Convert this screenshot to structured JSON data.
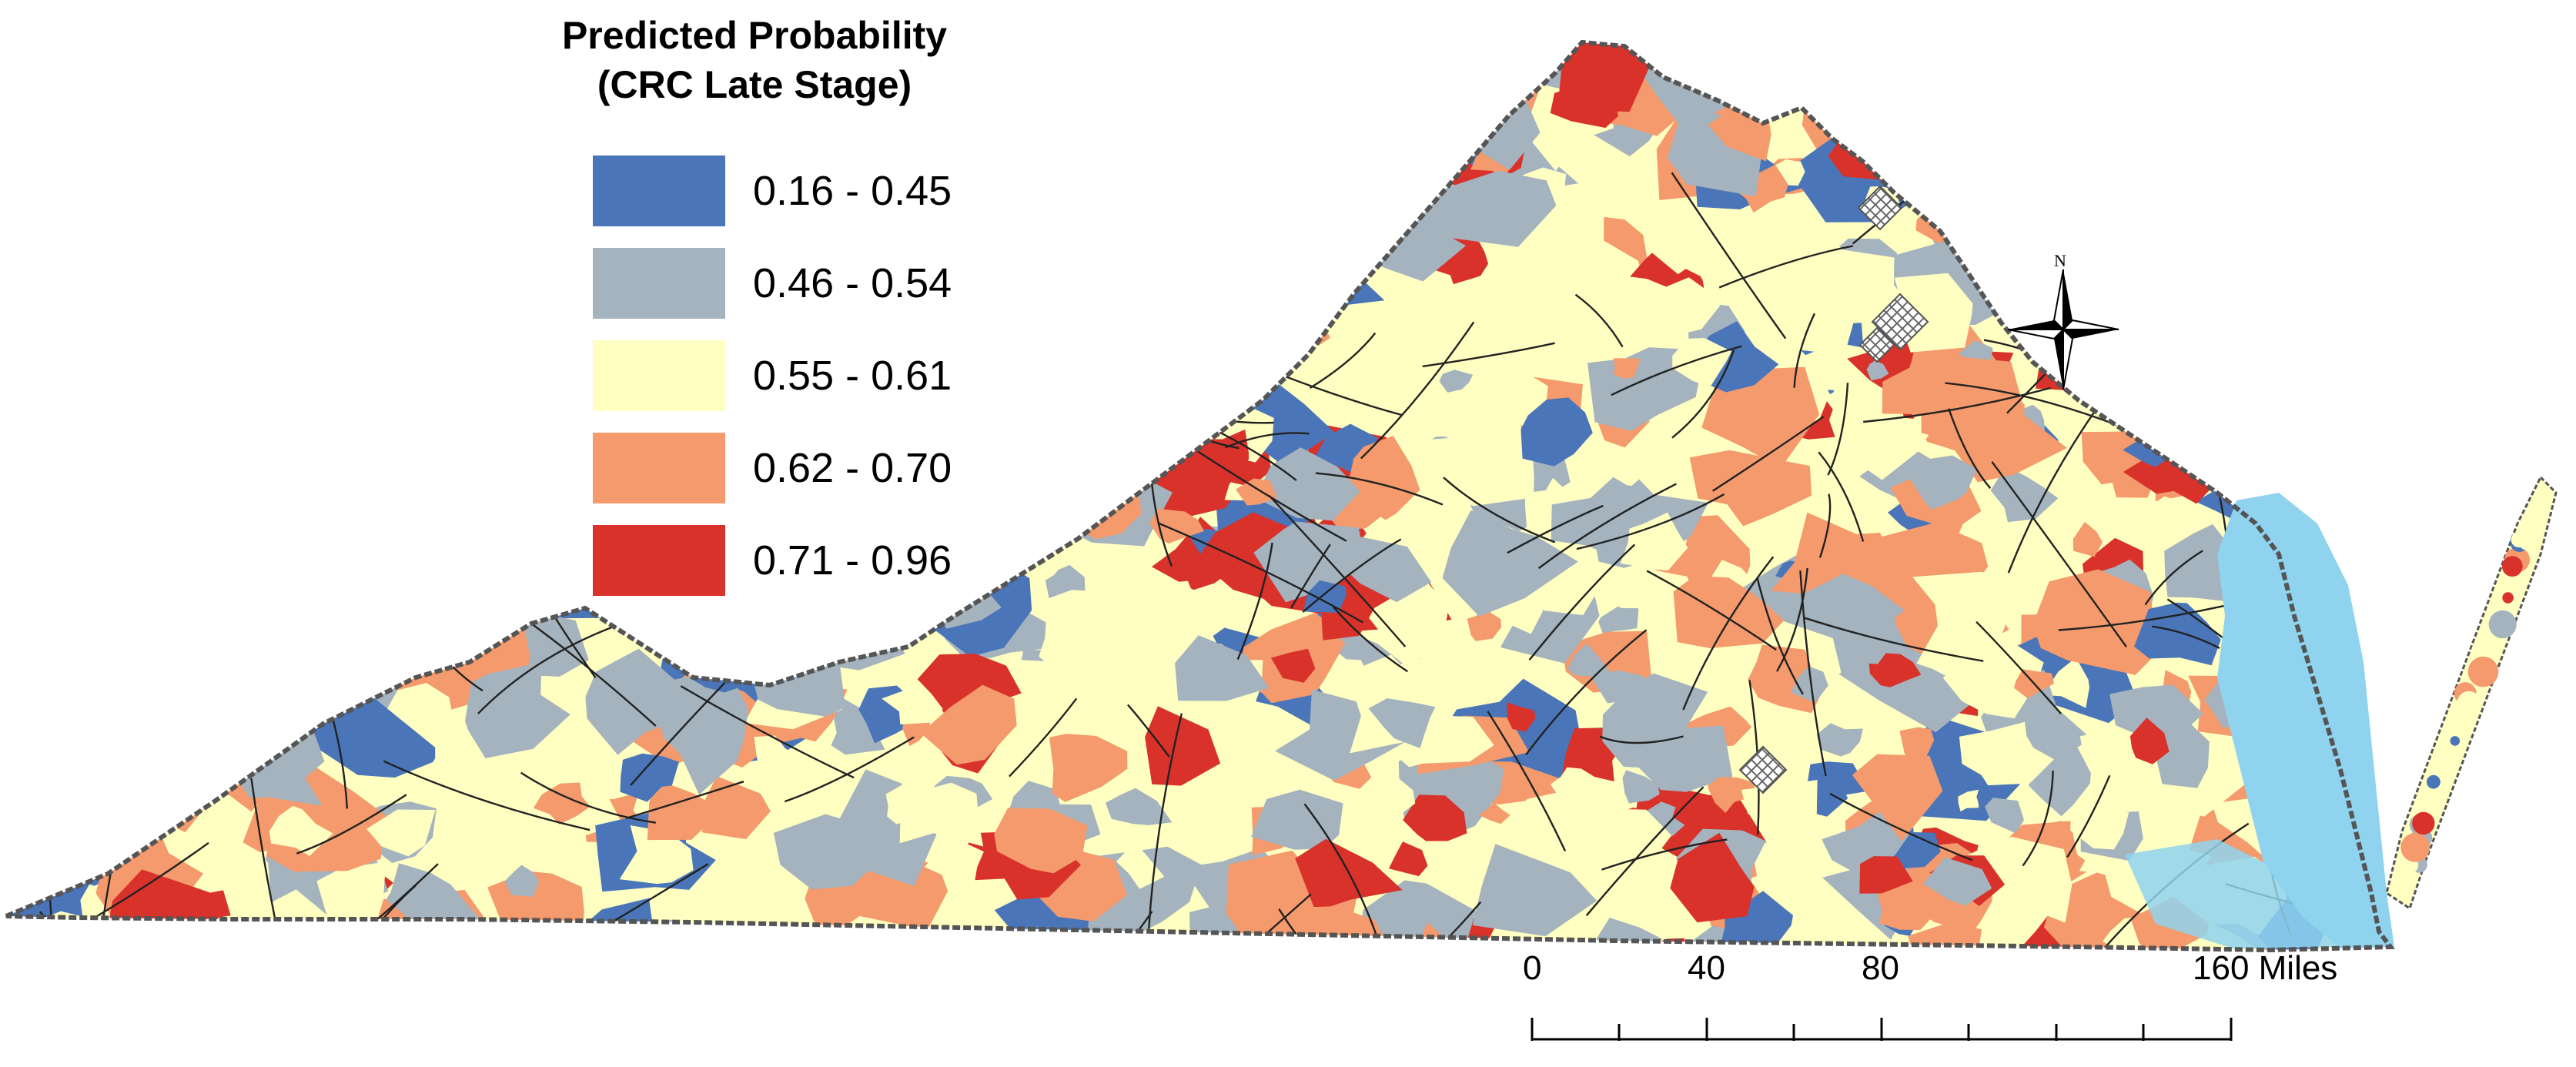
{
  "legend": {
    "title_line1": "Predicted Probability",
    "title_line2": "(CRC Late Stage)",
    "classes": [
      {
        "label": "0.16 - 0.45",
        "color": "#4a76b9"
      },
      {
        "label": "0.46 - 0.54",
        "color": "#a4b3be"
      },
      {
        "label": "0.55 - 0.61",
        "color": "#ffffc2"
      },
      {
        "label": "0.62 - 0.70",
        "color": "#f49a6c"
      },
      {
        "label": "0.71 - 0.96",
        "color": "#d8322b"
      }
    ]
  },
  "colors": {
    "water": "#8fd3ef",
    "boundary": "#222222",
    "state_outline": "#555555",
    "hatched_area": "#ffffff"
  },
  "north_arrow": {
    "label": "N"
  },
  "scale_bar": {
    "labels": [
      "0",
      "40",
      "80",
      "160 Miles"
    ]
  }
}
